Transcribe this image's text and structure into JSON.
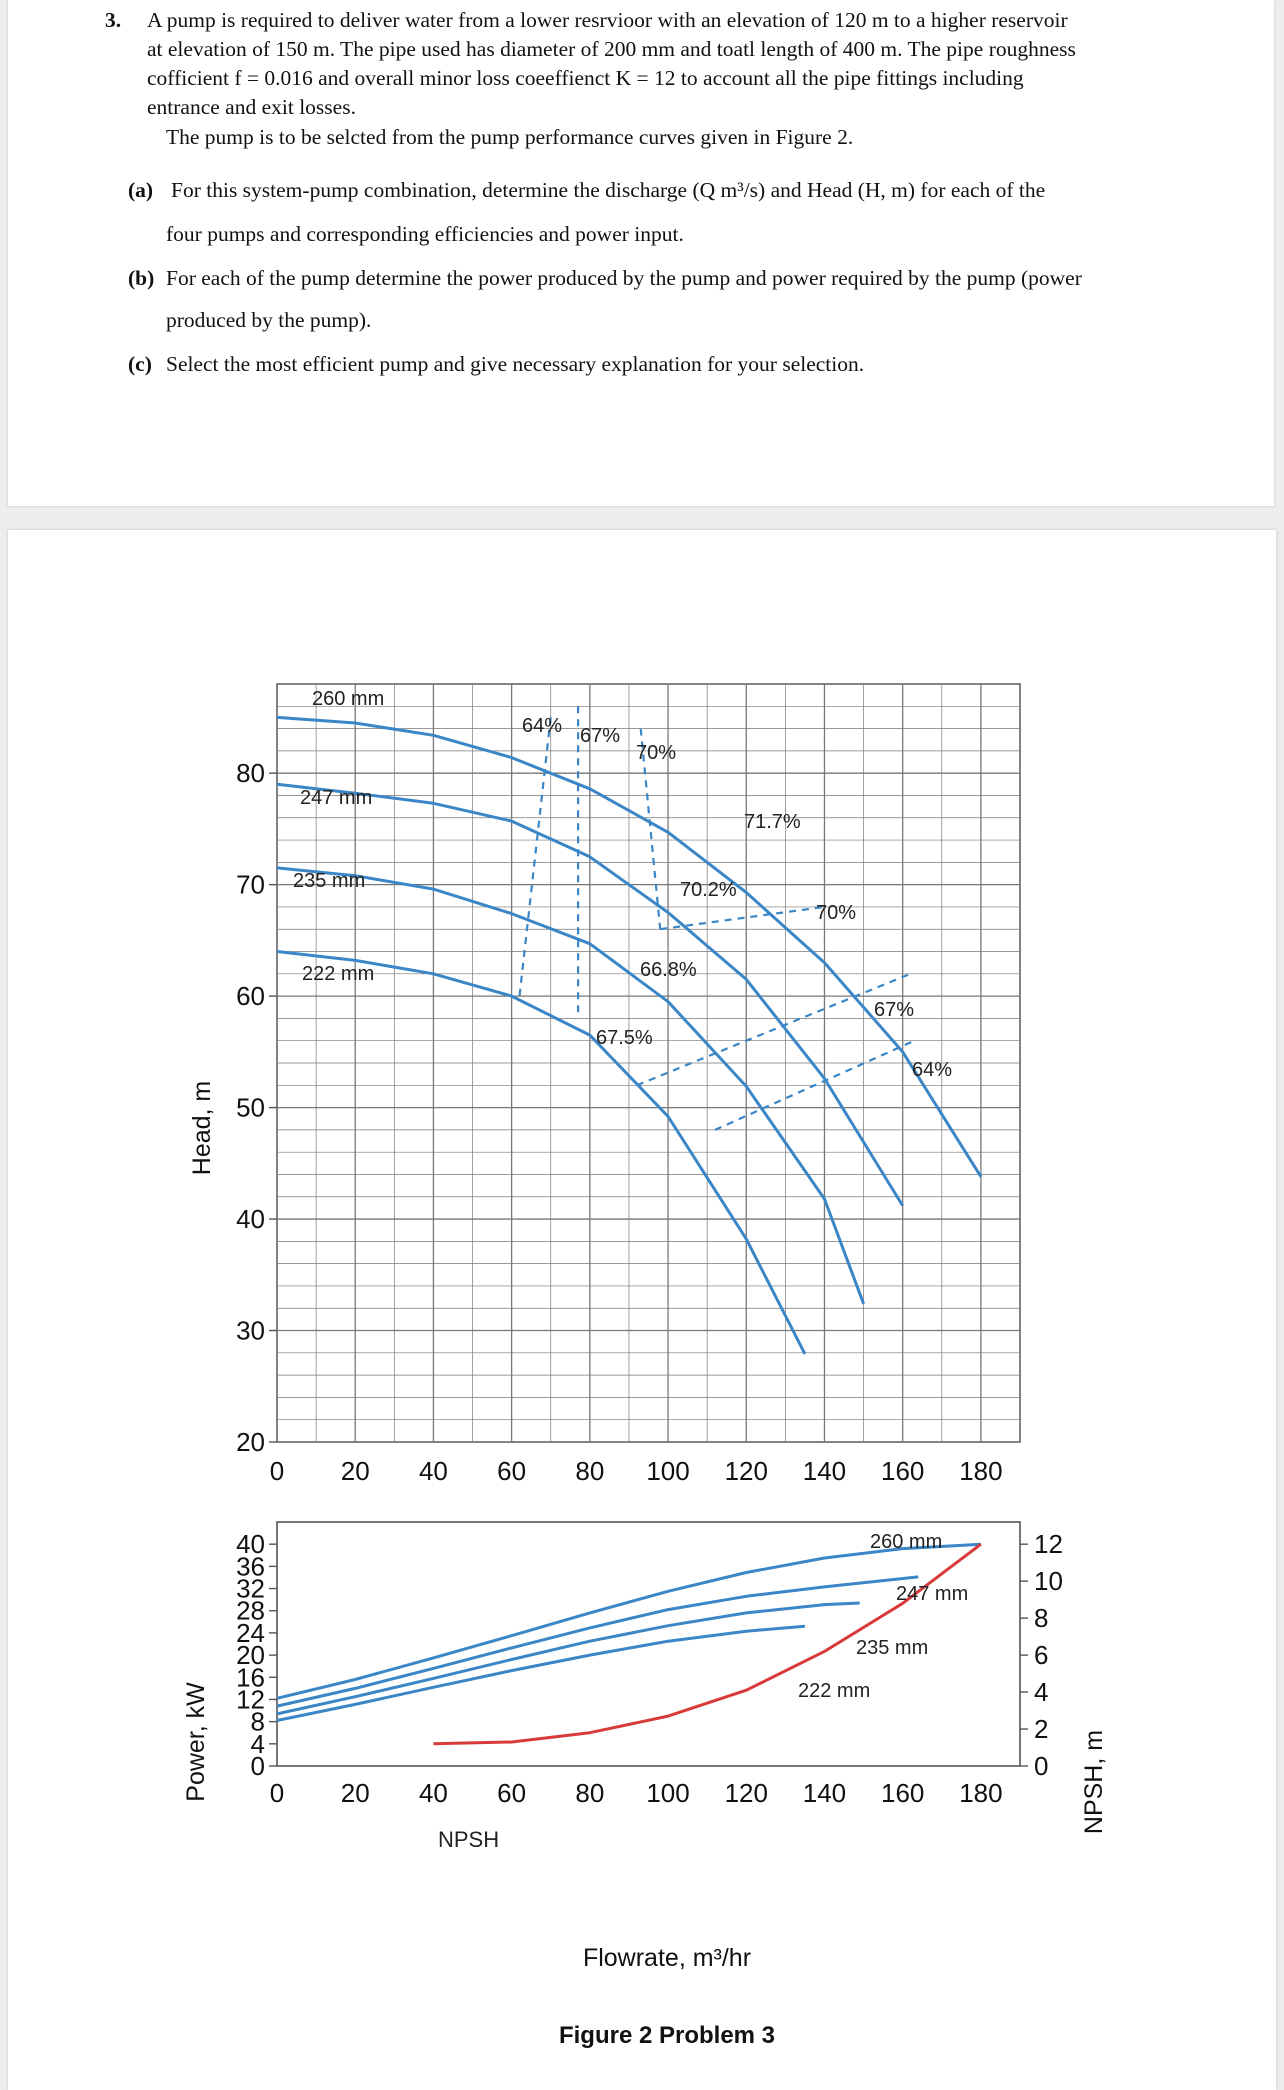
{
  "problem": {
    "number": "3.",
    "intro_lines": [
      "A pump is required to deliver water from a lower resrvioor with an elevation of 120 m to a higher reservoir",
      "at elevation of 150 m. The pipe used has diameter of 200 mm and toatl length of 400 m. The pipe roughness",
      "cofficient f = 0.016 and overall minor loss coeeffienct K = 12 to account all the pipe fittings including",
      "entrance and exit losses."
    ],
    "select_line": "The pump is to be selcted from the pump performance curves given in Figure 2.",
    "parts": [
      {
        "label": "(a)",
        "line1": "For this system-pump combination, determine the discharge (Q m³/s) and Head (H, m) for each of the",
        "line2": "four pumps and corresponding efficiencies and power input."
      },
      {
        "label": "(b)",
        "line1": "For each of the pump determine the power produced by the pump and power required by the pump (power",
        "line2": "produced by the pump)."
      },
      {
        "label": "(c)",
        "line1": "Select the most efficient pump and give necessary explanation for your selection.",
        "line2": ""
      }
    ]
  },
  "figure": {
    "caption": "Figure 2 Problem 3",
    "head_axis_label": "Head, m",
    "power_axis_label": "Power, kW",
    "npsh_axis_label": "NPSH, m",
    "flow_axis_label": "Flowrate, m³/hr",
    "npsh_curve_label": "NPSH",
    "colors": {
      "curve": "#3a86c6",
      "npsh": "#d83a3a",
      "grid": "#777777",
      "efficiency_dash": "#3a86c6"
    }
  },
  "chart_data": [
    {
      "type": "line",
      "title": "",
      "xlabel": "",
      "ylabel": "Head, m",
      "xlim": [
        0,
        190
      ],
      "ylim": [
        20,
        88
      ],
      "x_ticks": [
        "0",
        "20",
        "40",
        "60",
        "80",
        "100",
        "120",
        "140",
        "160",
        "180"
      ],
      "y_ticks": [
        "20",
        "30",
        "40",
        "50",
        "60",
        "70",
        "80"
      ],
      "grid": true,
      "series": [
        {
          "name": "260 mm",
          "points": [
            [
              0,
              85
            ],
            [
              20,
              84.5
            ],
            [
              40,
              83.4
            ],
            [
              60,
              81.4
            ],
            [
              80,
              78.6
            ],
            [
              100,
              74.7
            ],
            [
              120,
              69.3
            ],
            [
              140,
              63
            ],
            [
              160,
              55
            ],
            [
              180,
              43.8
            ]
          ]
        },
        {
          "name": "247 mm",
          "points": [
            [
              0,
              79
            ],
            [
              20,
              78.2
            ],
            [
              40,
              77.3
            ],
            [
              60,
              75.7
            ],
            [
              80,
              72.5
            ],
            [
              100,
              67.5
            ],
            [
              120,
              61.5
            ],
            [
              140,
              52.6
            ],
            [
              160,
              41.2
            ]
          ]
        },
        {
          "name": "235 mm",
          "points": [
            [
              0,
              71.5
            ],
            [
              20,
              70.8
            ],
            [
              40,
              69.6
            ],
            [
              60,
              67.4
            ],
            [
              80,
              64.7
            ],
            [
              100,
              59.5
            ],
            [
              120,
              51.9
            ],
            [
              140,
              41.8
            ],
            [
              150,
              32.4
            ]
          ]
        },
        {
          "name": "222 mm",
          "points": [
            [
              0,
              64
            ],
            [
              20,
              63.2
            ],
            [
              40,
              62
            ],
            [
              60,
              60
            ],
            [
              80,
              56.5
            ],
            [
              100,
              49.2
            ],
            [
              120,
              38.2
            ],
            [
              135,
              27.9
            ]
          ]
        }
      ],
      "efficiency_labels": [
        "64%",
        "67%",
        "70%",
        "71.7%",
        "70.2%",
        "70%",
        "66.8%",
        "67%",
        "67.5%",
        "64%"
      ],
      "efficiency_lines": [
        {
          "points": [
            [
              70,
              85
            ],
            [
              62,
              60
            ]
          ]
        },
        {
          "points": [
            [
              77,
              86
            ],
            [
              77,
              58
            ]
          ]
        },
        {
          "points": [
            [
              93,
              84
            ],
            [
              98,
              66
            ]
          ]
        },
        {
          "points": [
            [
              98,
              66
            ],
            [
              140,
              68
            ]
          ]
        },
        {
          "points": [
            [
              92,
              52
            ],
            [
              162,
              62
            ]
          ]
        },
        {
          "points": [
            [
              112,
              48
            ],
            [
              163,
              56
            ]
          ]
        }
      ]
    },
    {
      "type": "line",
      "title": "",
      "xlabel": "Flowrate, m³/hr",
      "ylabel": "Power, kW",
      "xlim": [
        0,
        190
      ],
      "ylim": [
        0,
        44
      ],
      "x_ticks": [
        "0",
        "20",
        "40",
        "60",
        "80",
        "100",
        "120",
        "140",
        "160",
        "180"
      ],
      "y_ticks": [
        "0",
        "4",
        "8",
        "12",
        "16",
        "20",
        "24",
        "28",
        "32",
        "36",
        "40"
      ],
      "y2label": "NPSH, m",
      "y2_ticks": [
        "0",
        "2",
        "4",
        "6",
        "8",
        "10",
        "12"
      ],
      "grid": false,
      "series": [
        {
          "name": "260 mm",
          "points": [
            [
              0,
              12.2
            ],
            [
              20,
              15.6
            ],
            [
              40,
              19.5
            ],
            [
              60,
              23.5
            ],
            [
              80,
              27.6
            ],
            [
              100,
              31.5
            ],
            [
              120,
              34.9
            ],
            [
              140,
              37.5
            ],
            [
              160,
              39.2
            ],
            [
              180,
              40
            ]
          ]
        },
        {
          "name": "247 mm",
          "points": [
            [
              0,
              10.8
            ],
            [
              20,
              14
            ],
            [
              40,
              17.6
            ],
            [
              60,
              21.3
            ],
            [
              80,
              24.9
            ],
            [
              100,
              28.2
            ],
            [
              120,
              30.6
            ],
            [
              140,
              32.3
            ],
            [
              164,
              34.1
            ]
          ]
        },
        {
          "name": "235 mm",
          "points": [
            [
              0,
              9.4
            ],
            [
              20,
              12.5
            ],
            [
              40,
              15.8
            ],
            [
              60,
              19.2
            ],
            [
              80,
              22.5
            ],
            [
              100,
              25.3
            ],
            [
              120,
              27.6
            ],
            [
              140,
              29.1
            ],
            [
              149,
              29.4
            ]
          ]
        },
        {
          "name": "222 mm",
          "points": [
            [
              0,
              8.2
            ],
            [
              20,
              11.1
            ],
            [
              40,
              14.2
            ],
            [
              60,
              17.2
            ],
            [
              80,
              20
            ],
            [
              100,
              22.5
            ],
            [
              120,
              24.3
            ],
            [
              135,
              25.2
            ]
          ]
        },
        {
          "name": "NPSH",
          "axis": "right",
          "points": [
            [
              40,
              1.2
            ],
            [
              60,
              1.3
            ],
            [
              80,
              1.8
            ],
            [
              100,
              2.7
            ],
            [
              120,
              4.1
            ],
            [
              140,
              6.2
            ],
            [
              160,
              8.8
            ],
            [
              180,
              12
            ]
          ]
        }
      ]
    }
  ]
}
